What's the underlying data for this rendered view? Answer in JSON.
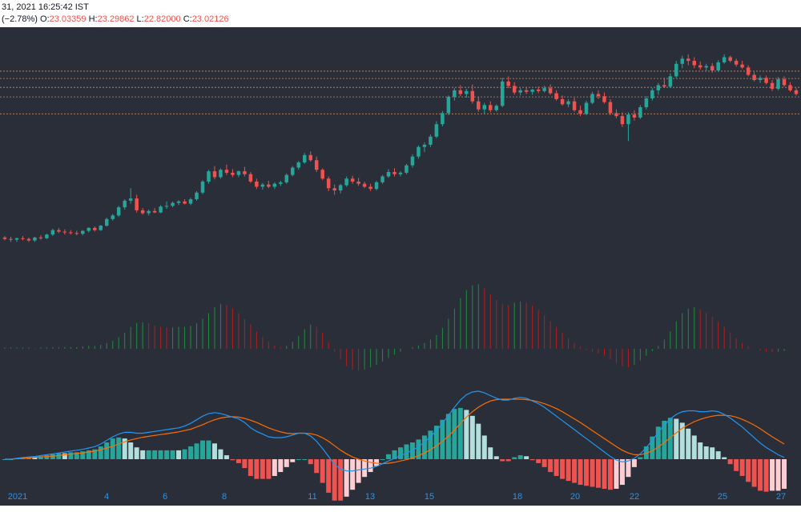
{
  "header": {
    "line1": "31, 2021 16:25:42 IST",
    "change": "(−2.78%)",
    "o_label": "O:",
    "o_value": "23.03359",
    "h_label": "H:",
    "h_value": "23.29862",
    "l_label": "L:",
    "l_value": "22.82000",
    "c_label": "C:",
    "c_value": "23.02126"
  },
  "colors": {
    "background": "#2a2e39",
    "up": "#26a69a",
    "down": "#ef5350",
    "level_line": "#f7a35c",
    "macd_line": "#2196f3",
    "signal_line": "#ff6d00",
    "hist_up_strong": "#26a69a",
    "hist_up_weak": "#b2dfdb",
    "hist_down_strong": "#ef5350",
    "hist_down_weak": "#ffcdd2",
    "axis_label": "#2196f3"
  },
  "chart_data": {
    "type": "candlestick",
    "x_tick_labels": [
      "2021",
      "4",
      "6",
      "8",
      "11",
      "13",
      "15",
      "18",
      "20",
      "22",
      "25",
      "27"
    ],
    "price_levels_approx": [
      34.2,
      33.2,
      32.0,
      30.7,
      28.4
    ],
    "price_range_approx": [
      8,
      38
    ],
    "candles_ohlc_approx": [
      [
        11.6,
        11.8,
        11.2,
        11.4
      ],
      [
        11.4,
        11.7,
        11.0,
        11.3
      ],
      [
        11.3,
        11.6,
        11.0,
        11.5
      ],
      [
        11.5,
        11.8,
        11.2,
        11.4
      ],
      [
        11.4,
        11.6,
        11.0,
        11.2
      ],
      [
        11.2,
        11.7,
        11.0,
        11.6
      ],
      [
        11.6,
        11.9,
        11.3,
        11.5
      ],
      [
        11.5,
        12.1,
        11.4,
        12.0
      ],
      [
        12.0,
        12.8,
        11.8,
        12.6
      ],
      [
        12.6,
        12.9,
        12.2,
        12.4
      ],
      [
        12.4,
        12.7,
        12.0,
        12.3
      ],
      [
        12.3,
        12.6,
        12.0,
        12.2
      ],
      [
        12.2,
        12.5,
        11.9,
        12.1
      ],
      [
        12.1,
        12.6,
        11.9,
        12.5
      ],
      [
        12.5,
        13.0,
        12.3,
        12.9
      ],
      [
        12.9,
        13.1,
        12.4,
        12.6
      ],
      [
        12.6,
        13.3,
        12.5,
        13.2
      ],
      [
        13.2,
        14.3,
        13.1,
        14.1
      ],
      [
        14.1,
        14.8,
        13.9,
        14.6
      ],
      [
        14.6,
        15.9,
        14.4,
        15.7
      ],
      [
        15.7,
        16.8,
        15.4,
        16.6
      ],
      [
        16.6,
        18.3,
        16.2,
        16.9
      ],
      [
        16.9,
        17.4,
        15.0,
        15.3
      ],
      [
        15.3,
        15.6,
        14.7,
        14.9
      ],
      [
        14.9,
        15.4,
        14.6,
        15.2
      ],
      [
        15.2,
        15.6,
        14.9,
        15.0
      ],
      [
        15.0,
        16.0,
        14.9,
        15.8
      ],
      [
        15.8,
        16.5,
        15.5,
        15.9
      ],
      [
        15.9,
        16.5,
        15.7,
        16.3
      ],
      [
        16.3,
        16.7,
        16.0,
        16.5
      ],
      [
        16.5,
        16.8,
        16.1,
        16.2
      ],
      [
        16.2,
        17.0,
        16.0,
        16.8
      ],
      [
        16.8,
        17.9,
        16.6,
        17.7
      ],
      [
        17.7,
        19.4,
        17.5,
        19.2
      ],
      [
        19.2,
        20.8,
        18.9,
        20.6
      ],
      [
        20.6,
        21.3,
        19.5,
        19.8
      ],
      [
        19.8,
        21.0,
        19.6,
        20.8
      ],
      [
        20.8,
        21.5,
        20.1,
        20.4
      ],
      [
        20.4,
        20.9,
        19.8,
        20.1
      ],
      [
        20.1,
        20.7,
        19.8,
        20.6
      ],
      [
        20.6,
        21.2,
        19.9,
        20.2
      ],
      [
        20.2,
        20.5,
        19.0,
        19.2
      ],
      [
        19.2,
        19.6,
        18.2,
        18.5
      ],
      [
        18.5,
        19.0,
        18.1,
        18.8
      ],
      [
        18.8,
        19.3,
        18.3,
        18.5
      ],
      [
        18.5,
        19.1,
        18.2,
        18.9
      ],
      [
        18.9,
        19.3,
        18.6,
        19.1
      ],
      [
        19.1,
        20.3,
        18.9,
        20.1
      ],
      [
        20.1,
        21.3,
        19.9,
        21.1
      ],
      [
        21.1,
        22.0,
        20.8,
        21.8
      ],
      [
        21.8,
        23.1,
        21.6,
        22.8
      ],
      [
        22.8,
        23.3,
        21.9,
        22.1
      ],
      [
        22.1,
        22.6,
        20.5,
        20.8
      ],
      [
        20.8,
        21.0,
        19.4,
        19.6
      ],
      [
        19.6,
        19.9,
        17.9,
        18.3
      ],
      [
        18.3,
        18.8,
        17.4,
        18.0
      ],
      [
        18.0,
        18.9,
        17.6,
        18.7
      ],
      [
        18.7,
        19.9,
        18.5,
        19.6
      ],
      [
        19.6,
        20.0,
        18.9,
        19.2
      ],
      [
        19.2,
        19.7,
        18.6,
        18.9
      ],
      [
        18.9,
        19.2,
        18.3,
        18.5
      ],
      [
        18.5,
        18.9,
        17.9,
        18.2
      ],
      [
        18.2,
        19.3,
        18.0,
        19.1
      ],
      [
        19.1,
        20.1,
        18.9,
        19.9
      ],
      [
        19.9,
        20.9,
        19.7,
        20.5
      ],
      [
        20.5,
        21.0,
        19.9,
        20.2
      ],
      [
        20.2,
        20.6,
        19.9,
        20.4
      ],
      [
        20.4,
        21.6,
        20.2,
        21.4
      ],
      [
        21.4,
        22.9,
        21.1,
        22.6
      ],
      [
        22.6,
        24.1,
        22.3,
        23.9
      ],
      [
        23.9,
        24.5,
        23.2,
        24.2
      ],
      [
        24.2,
        25.6,
        23.9,
        25.3
      ],
      [
        25.3,
        27.4,
        25.1,
        27.0
      ],
      [
        27.0,
        28.8,
        26.7,
        28.5
      ],
      [
        28.5,
        30.9,
        28.2,
        30.7
      ],
      [
        30.7,
        31.9,
        30.2,
        31.6
      ],
      [
        31.6,
        32.3,
        30.8,
        31.1
      ],
      [
        31.1,
        31.8,
        30.6,
        31.5
      ],
      [
        31.5,
        32.4,
        29.8,
        30.1
      ],
      [
        30.1,
        30.7,
        28.7,
        29.0
      ],
      [
        29.0,
        29.9,
        28.4,
        29.6
      ],
      [
        29.6,
        30.1,
        28.6,
        28.9
      ],
      [
        28.9,
        29.7,
        28.7,
        29.5
      ],
      [
        29.5,
        33.3,
        29.3,
        32.8
      ],
      [
        32.8,
        33.5,
        31.9,
        32.2
      ],
      [
        32.2,
        32.7,
        31.0,
        31.3
      ],
      [
        31.3,
        31.9,
        30.9,
        31.6
      ],
      [
        31.6,
        32.0,
        31.1,
        31.4
      ],
      [
        31.4,
        31.8,
        31.0,
        31.7
      ],
      [
        31.7,
        32.1,
        31.2,
        31.5
      ],
      [
        31.5,
        32.2,
        31.3,
        31.9
      ],
      [
        31.9,
        32.4,
        31.0,
        31.2
      ],
      [
        31.2,
        31.6,
        30.2,
        30.4
      ],
      [
        30.4,
        30.9,
        29.5,
        29.7
      ],
      [
        29.7,
        30.4,
        29.3,
        30.1
      ],
      [
        30.1,
        30.6,
        28.7,
        28.9
      ],
      [
        28.9,
        29.5,
        28.1,
        28.4
      ],
      [
        28.4,
        30.2,
        28.2,
        29.9
      ],
      [
        29.9,
        31.4,
        29.7,
        31.1
      ],
      [
        31.1,
        31.6,
        30.4,
        30.8
      ],
      [
        30.8,
        31.3,
        29.8,
        30.0
      ],
      [
        30.0,
        30.4,
        28.2,
        28.5
      ],
      [
        28.5,
        29.0,
        27.8,
        28.1
      ],
      [
        28.1,
        28.6,
        26.6,
        27.0
      ],
      [
        27.0,
        28.6,
        24.7,
        28.3
      ],
      [
        28.3,
        28.9,
        27.5,
        27.9
      ],
      [
        27.9,
        29.6,
        27.7,
        29.3
      ],
      [
        29.3,
        30.8,
        29.0,
        30.5
      ],
      [
        30.5,
        31.9,
        30.2,
        31.6
      ],
      [
        31.6,
        32.6,
        31.0,
        32.3
      ],
      [
        32.3,
        33.3,
        31.9,
        32.1
      ],
      [
        32.1,
        33.9,
        31.9,
        33.5
      ],
      [
        33.5,
        35.6,
        33.3,
        35.2
      ],
      [
        35.2,
        36.3,
        34.6,
        35.9
      ],
      [
        35.9,
        36.5,
        35.0,
        35.6
      ],
      [
        35.6,
        36.1,
        34.6,
        35.0
      ],
      [
        35.0,
        35.5,
        34.4,
        34.7
      ],
      [
        34.7,
        35.2,
        34.2,
        34.9
      ],
      [
        34.9,
        35.3,
        34.0,
        34.3
      ],
      [
        34.3,
        35.7,
        34.1,
        35.4
      ],
      [
        35.4,
        36.5,
        35.2,
        36.1
      ],
      [
        36.1,
        36.3,
        35.4,
        35.6
      ],
      [
        35.6,
        35.9,
        34.8,
        35.1
      ],
      [
        35.1,
        35.6,
        34.5,
        34.7
      ],
      [
        34.7,
        35.0,
        33.5,
        33.7
      ],
      [
        33.7,
        34.1,
        32.8,
        33.0
      ],
      [
        33.0,
        33.6,
        32.6,
        33.3
      ],
      [
        33.3,
        33.6,
        32.4,
        32.6
      ],
      [
        32.6,
        33.0,
        31.5,
        31.8
      ],
      [
        31.8,
        33.4,
        31.6,
        33.1
      ],
      [
        33.1,
        33.5,
        32.1,
        32.3
      ],
      [
        32.3,
        32.7,
        31.4,
        31.6
      ],
      [
        31.6,
        31.9,
        30.9,
        31.1
      ]
    ],
    "indicator_1_histogram_approx": [
      0.02,
      0.02,
      0.02,
      0.02,
      0.02,
      0.01,
      0.02,
      0.02,
      0.03,
      0.03,
      0.03,
      0.03,
      0.03,
      0.04,
      0.05,
      0.05,
      0.07,
      0.1,
      0.14,
      0.2,
      0.28,
      0.38,
      0.45,
      0.46,
      0.44,
      0.4,
      0.38,
      0.37,
      0.37,
      0.38,
      0.38,
      0.4,
      0.44,
      0.52,
      0.62,
      0.72,
      0.78,
      0.76,
      0.7,
      0.62,
      0.52,
      0.42,
      0.3,
      0.2,
      0.12,
      0.06,
      0.03,
      0.05,
      0.12,
      0.22,
      0.34,
      0.42,
      0.38,
      0.28,
      0.12,
      -0.05,
      -0.18,
      -0.3,
      -0.36,
      -0.38,
      -0.36,
      -0.32,
      -0.28,
      -0.22,
      -0.16,
      -0.1,
      -0.05,
      0.0,
      0.03,
      0.06,
      0.1,
      0.16,
      0.24,
      0.36,
      0.52,
      0.7,
      0.88,
      1.02,
      1.1,
      1.12,
      1.05,
      0.95,
      0.85,
      0.78,
      0.76,
      0.8,
      0.82,
      0.8,
      0.75,
      0.68,
      0.58,
      0.48,
      0.38,
      0.28,
      0.18,
      0.1,
      0.04,
      -0.02,
      -0.05,
      -0.08,
      -0.12,
      -0.18,
      -0.25,
      -0.3,
      -0.32,
      -0.28,
      -0.2,
      -0.12,
      -0.04,
      0.05,
      0.16,
      0.3,
      0.48,
      0.62,
      0.7,
      0.72,
      0.68,
      0.62,
      0.55,
      0.47,
      0.38,
      0.28,
      0.18,
      0.1,
      0.04,
      0.0,
      -0.03,
      -0.05,
      -0.06,
      -0.05,
      -0.04
    ],
    "macd": {
      "series": [
        {
          "key": "macd",
          "values_approx": [
            0.0,
            0.0,
            0.02,
            0.04,
            0.05,
            0.06,
            0.08,
            0.1,
            0.12,
            0.14,
            0.16,
            0.18,
            0.2,
            0.22,
            0.25,
            0.28,
            0.34,
            0.42,
            0.5,
            0.56,
            0.6,
            0.6,
            0.58,
            0.58,
            0.6,
            0.62,
            0.64,
            0.66,
            0.68,
            0.7,
            0.74,
            0.8,
            0.88,
            0.96,
            1.02,
            1.04,
            1.02,
            0.98,
            0.94,
            0.9,
            0.82,
            0.7,
            0.62,
            0.56,
            0.5,
            0.48,
            0.48,
            0.5,
            0.54,
            0.58,
            0.58,
            0.52,
            0.4,
            0.24,
            0.06,
            -0.12,
            -0.22,
            -0.26,
            -0.26,
            -0.24,
            -0.22,
            -0.2,
            -0.16,
            -0.1,
            -0.04,
            0.02,
            0.08,
            0.14,
            0.2,
            0.28,
            0.38,
            0.5,
            0.64,
            0.8,
            0.98,
            1.16,
            1.32,
            1.44,
            1.5,
            1.52,
            1.48,
            1.42,
            1.36,
            1.32,
            1.32,
            1.36,
            1.38,
            1.36,
            1.3,
            1.24,
            1.16,
            1.06,
            0.96,
            0.86,
            0.76,
            0.66,
            0.56,
            0.46,
            0.36,
            0.26,
            0.16,
            0.06,
            -0.02,
            -0.06,
            -0.04,
            0.02,
            0.12,
            0.26,
            0.42,
            0.6,
            0.76,
            0.9,
            1.0,
            1.06,
            1.08,
            1.08,
            1.06,
            1.06,
            1.08,
            1.06,
            1.0,
            0.92,
            0.82,
            0.72,
            0.6,
            0.48,
            0.36,
            0.26,
            0.18,
            0.1,
            0.04
          ]
        },
        {
          "key": "signal",
          "values_approx": [
            0.0,
            0.0,
            0.01,
            0.02,
            0.03,
            0.04,
            0.05,
            0.06,
            0.07,
            0.08,
            0.1,
            0.11,
            0.13,
            0.14,
            0.16,
            0.18,
            0.21,
            0.25,
            0.29,
            0.34,
            0.39,
            0.43,
            0.46,
            0.49,
            0.51,
            0.53,
            0.55,
            0.57,
            0.59,
            0.61,
            0.64,
            0.67,
            0.72,
            0.77,
            0.83,
            0.88,
            0.92,
            0.94,
            0.95,
            0.94,
            0.91,
            0.87,
            0.82,
            0.76,
            0.7,
            0.65,
            0.61,
            0.58,
            0.57,
            0.58,
            0.58,
            0.57,
            0.54,
            0.48,
            0.4,
            0.3,
            0.2,
            0.12,
            0.05,
            0.0,
            -0.04,
            -0.07,
            -0.09,
            -0.1,
            -0.09,
            -0.07,
            -0.04,
            -0.01,
            0.03,
            0.08,
            0.14,
            0.21,
            0.3,
            0.4,
            0.52,
            0.65,
            0.8,
            0.94,
            1.06,
            1.16,
            1.24,
            1.3,
            1.33,
            1.34,
            1.34,
            1.34,
            1.34,
            1.33,
            1.31,
            1.28,
            1.24,
            1.19,
            1.13,
            1.06,
            0.98,
            0.9,
            0.82,
            0.73,
            0.64,
            0.55,
            0.46,
            0.37,
            0.28,
            0.2,
            0.14,
            0.1,
            0.1,
            0.13,
            0.19,
            0.27,
            0.37,
            0.48,
            0.59,
            0.69,
            0.77,
            0.84,
            0.89,
            0.93,
            0.96,
            0.98,
            0.98,
            0.97,
            0.94,
            0.89,
            0.83,
            0.76,
            0.68,
            0.59,
            0.5,
            0.42,
            0.34
          ]
        }
      ]
    }
  }
}
